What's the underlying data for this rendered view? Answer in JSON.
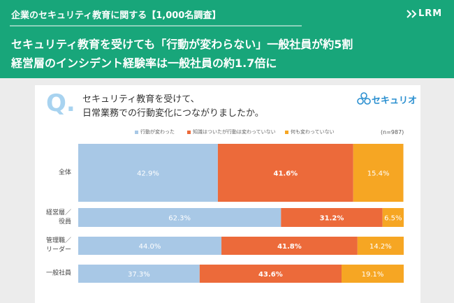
{
  "header": {
    "kicker": "企業のセキュリティ教育に関する【1,000名調査】",
    "logo": "LRM",
    "headline": [
      "セキュリティ教育を受けても「行動が変わらない」一般社員が約5割",
      "経営層のインシデント経験率は一般社員の約1.7倍に"
    ]
  },
  "q_label": "Q.",
  "brand": "セキュリオ",
  "chart_data": {
    "type": "stacked-bar-horizontal",
    "title": "セキュリティ教育を受けて、\n日常業務での行動変化につながりましたか。",
    "note": "(n=987)",
    "categories": [
      "全体",
      "経営層／\n役員",
      "管理職／\nリーダー",
      "一般社員"
    ],
    "xlim": [
      0,
      100
    ],
    "series": [
      {
        "name": "行動が変わった",
        "color": "#a8c8e6",
        "values": [
          42.9,
          62.3,
          44.0,
          37.3
        ],
        "value_labels": [
          "42.9%",
          "62.3%",
          "44.0%",
          "37.3%"
        ]
      },
      {
        "name": "知識はついたが行動は変わっていない",
        "color": "#ec6a3a",
        "values": [
          41.6,
          31.2,
          41.8,
          43.6
        ],
        "value_labels": [
          "41.6%",
          "31.2%",
          "41.8%",
          "43.6%"
        ]
      },
      {
        "name": "何も変わっていない",
        "color": "#f6a623",
        "values": [
          15.4,
          6.5,
          14.2,
          19.1
        ],
        "value_labels": [
          "15.4%",
          "6.5%",
          "14.2%",
          "19.1%"
        ]
      }
    ]
  }
}
